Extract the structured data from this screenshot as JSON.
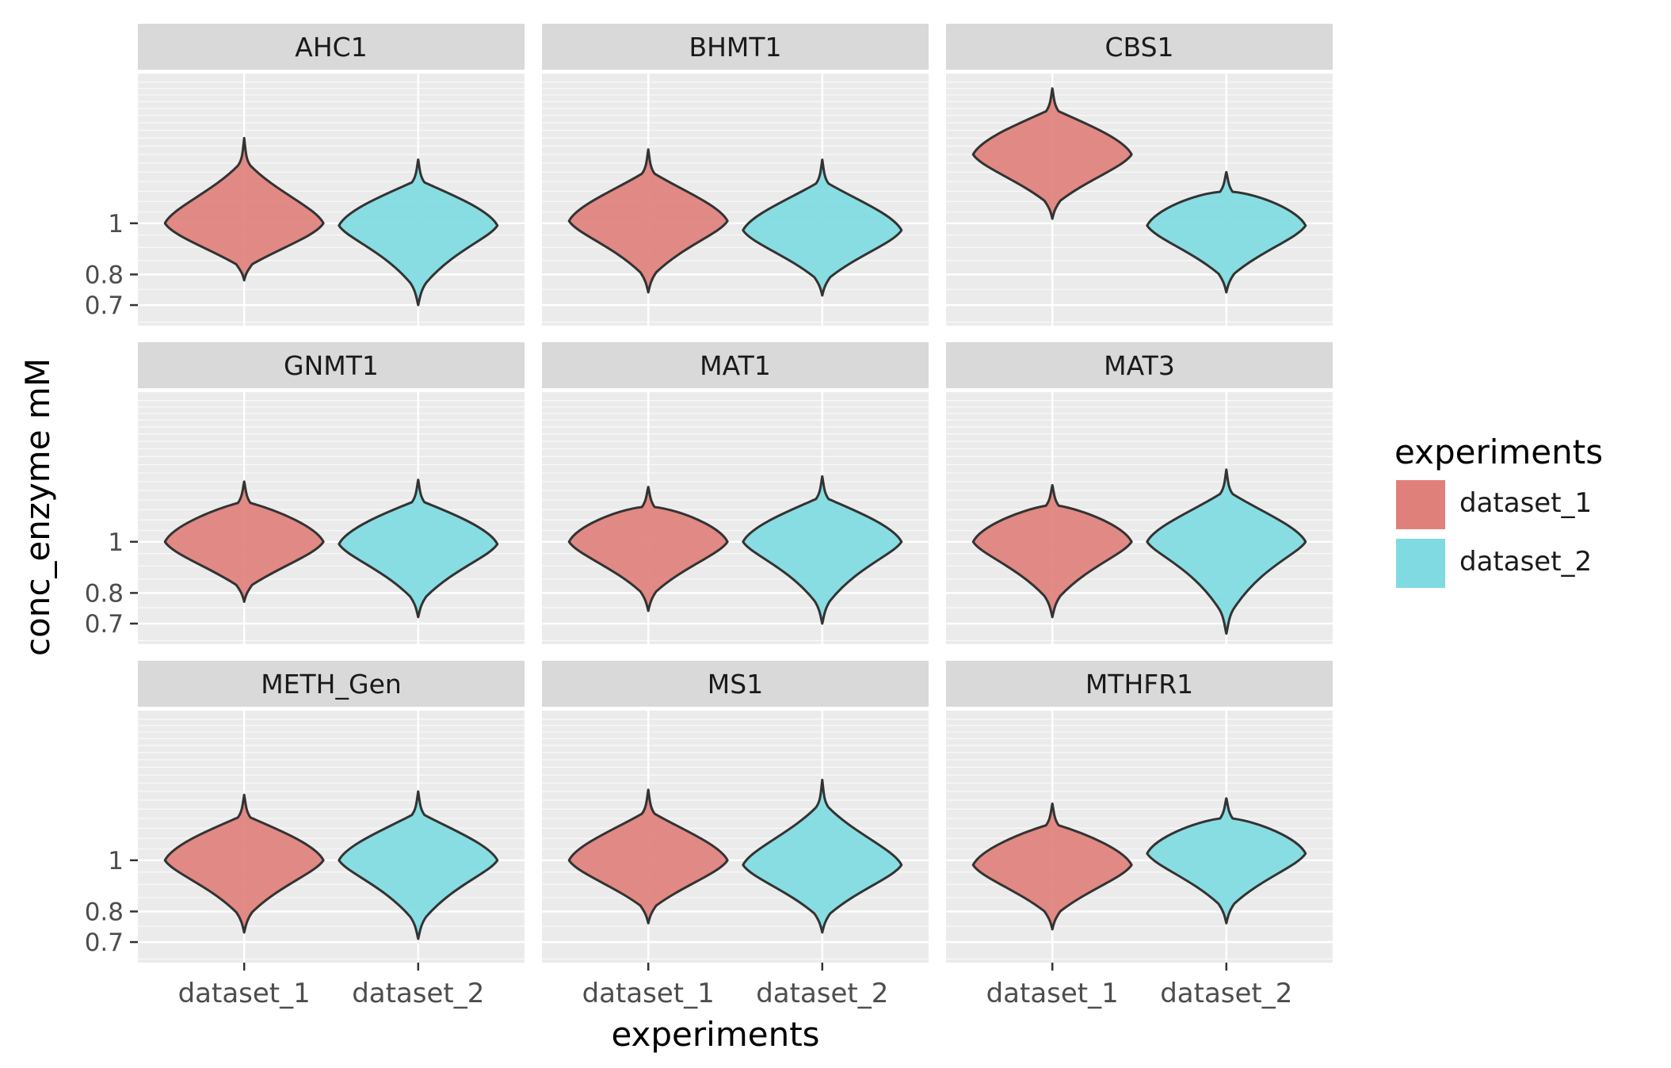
{
  "chart_data": {
    "type": "violin",
    "xlabel": "experiments",
    "ylabel": "conc_enzyme mM",
    "y_scale": "log",
    "y_ticks": [
      0.7,
      0.8,
      1
    ],
    "y_tick_labels": [
      "0.7",
      "0.8",
      "1"
    ],
    "categories": [
      "dataset_1",
      "dataset_2"
    ],
    "legend": {
      "title": "experiments",
      "position": "right",
      "entries": [
        {
          "label": "dataset_1",
          "color": "#e0807b"
        },
        {
          "label": "dataset_2",
          "color": "#7fdbe1"
        }
      ]
    },
    "colors": {
      "dataset_1": "#e0807b",
      "dataset_2": "#7fdbe1",
      "panel_bg": "#ebebeb",
      "strip_bg": "#d9d9d9",
      "outline": "#333333"
    },
    "panels": [
      {
        "title": "AHC1",
        "violins": [
          {
            "group": "dataset_1",
            "min": 0.78,
            "median": 1.0,
            "max": 1.45
          },
          {
            "group": "dataset_2",
            "min": 0.7,
            "median": 0.99,
            "max": 1.32
          }
        ]
      },
      {
        "title": "BHMT1",
        "violins": [
          {
            "group": "dataset_1",
            "min": 0.74,
            "median": 1.01,
            "max": 1.38
          },
          {
            "group": "dataset_2",
            "min": 0.73,
            "median": 0.97,
            "max": 1.32
          }
        ]
      },
      {
        "title": "CBS1",
        "violins": [
          {
            "group": "dataset_1",
            "min": 1.02,
            "median": 1.35,
            "max": 1.8
          },
          {
            "group": "dataset_2",
            "min": 0.74,
            "median": 0.99,
            "max": 1.25
          }
        ]
      },
      {
        "title": "GNMT1",
        "violins": [
          {
            "group": "dataset_1",
            "min": 0.77,
            "median": 1.0,
            "max": 1.3
          },
          {
            "group": "dataset_2",
            "min": 0.72,
            "median": 0.99,
            "max": 1.31
          }
        ]
      },
      {
        "title": "MAT1",
        "violins": [
          {
            "group": "dataset_1",
            "min": 0.74,
            "median": 1.0,
            "max": 1.27
          },
          {
            "group": "dataset_2",
            "min": 0.7,
            "median": 1.0,
            "max": 1.33
          }
        ]
      },
      {
        "title": "MAT3",
        "violins": [
          {
            "group": "dataset_1",
            "min": 0.72,
            "median": 1.0,
            "max": 1.28
          },
          {
            "group": "dataset_2",
            "min": 0.67,
            "median": 1.0,
            "max": 1.37
          }
        ]
      },
      {
        "title": "METH_Gen",
        "violins": [
          {
            "group": "dataset_1",
            "min": 0.73,
            "median": 1.0,
            "max": 1.33
          },
          {
            "group": "dataset_2",
            "min": 0.71,
            "median": 1.0,
            "max": 1.35
          }
        ]
      },
      {
        "title": "MS1",
        "violins": [
          {
            "group": "dataset_1",
            "min": 0.76,
            "median": 1.0,
            "max": 1.36
          },
          {
            "group": "dataset_2",
            "min": 0.73,
            "median": 0.98,
            "max": 1.42
          }
        ]
      },
      {
        "title": "MTHFR1",
        "violins": [
          {
            "group": "dataset_1",
            "min": 0.74,
            "median": 0.98,
            "max": 1.28
          },
          {
            "group": "dataset_2",
            "min": 0.76,
            "median": 1.03,
            "max": 1.31
          }
        ]
      }
    ]
  }
}
